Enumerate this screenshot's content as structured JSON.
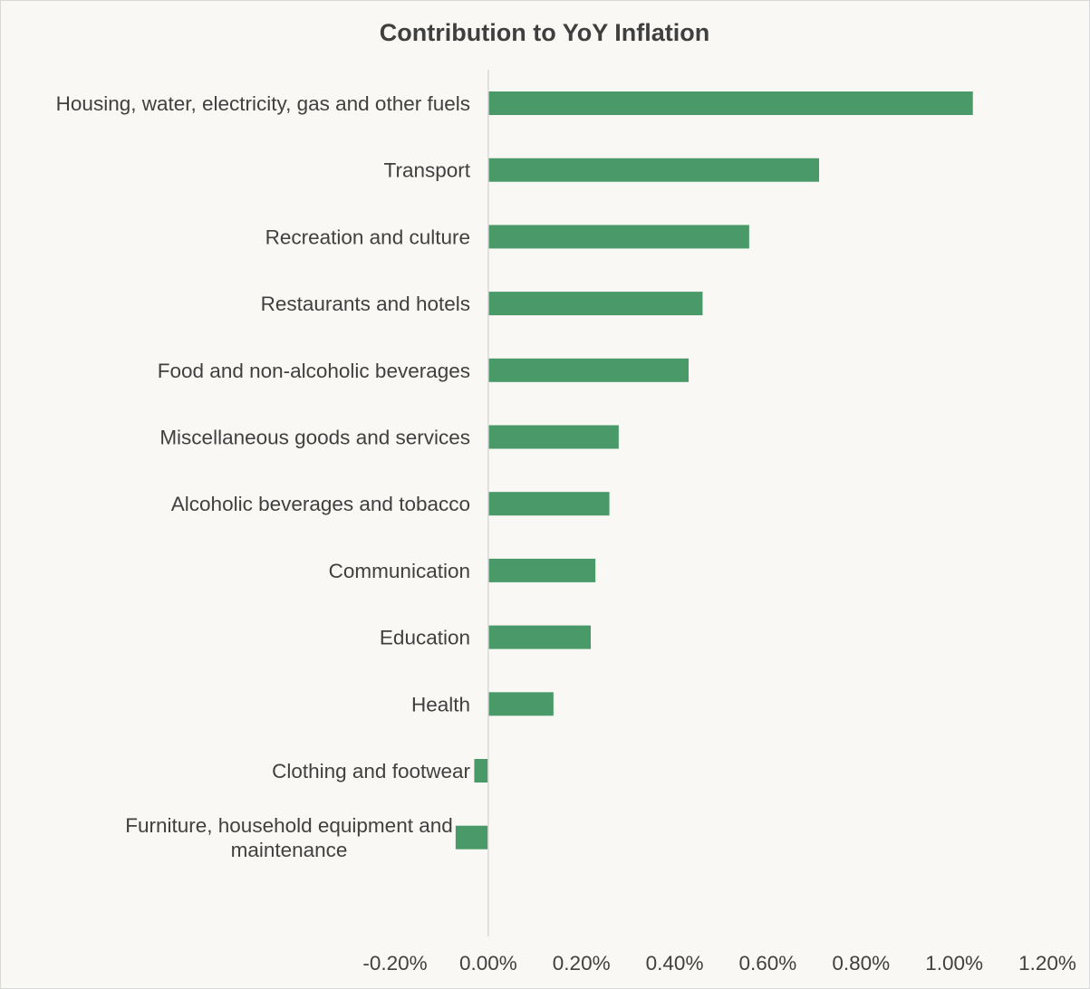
{
  "chart_data": {
    "type": "bar",
    "orientation": "horizontal",
    "title": "Contribution to YoY Inflation",
    "xlabel": "",
    "ylabel": "",
    "categories": [
      "Housing, water, electricity, gas and other fuels",
      "Transport",
      "Recreation and culture",
      "Restaurants and hotels",
      "Food and non-alcoholic beverages",
      "Miscellaneous goods and services",
      "Alcoholic beverages and tobacco",
      "Communication",
      "Education",
      "Health",
      "Clothing and footwear",
      "Furniture, household equipment and maintenance"
    ],
    "category_label_lines": [
      [
        "Housing, water, electricity, gas and other fuels"
      ],
      [
        "Transport"
      ],
      [
        "Recreation and culture"
      ],
      [
        "Restaurants and hotels"
      ],
      [
        "Food and non-alcoholic beverages"
      ],
      [
        "Miscellaneous goods and services"
      ],
      [
        "Alcoholic beverages and tobacco"
      ],
      [
        "Communication"
      ],
      [
        "Education"
      ],
      [
        "Health"
      ],
      [
        "Clothing and footwear"
      ],
      [
        "Furniture, household equipment and",
        "maintenance"
      ]
    ],
    "values": [
      1.04,
      0.71,
      0.56,
      0.46,
      0.43,
      0.28,
      0.26,
      0.23,
      0.22,
      0.14,
      -0.03,
      -0.07
    ],
    "value_unit": "%",
    "xlim": [
      -0.2,
      1.2
    ],
    "xticks": [
      -0.2,
      0.0,
      0.2,
      0.4,
      0.6,
      0.8,
      1.0,
      1.2
    ],
    "xtick_labels": [
      "-0.20%",
      "0.00%",
      "0.20%",
      "0.40%",
      "0.60%",
      "0.80%",
      "1.00%",
      "1.20%"
    ],
    "grid": false,
    "legend": "none",
    "colors": {
      "bar": "#4a9a69",
      "background": "#f9f8f4",
      "axis": "#d9d9d9",
      "text": "#404040",
      "title": "#3f3f3f"
    }
  }
}
